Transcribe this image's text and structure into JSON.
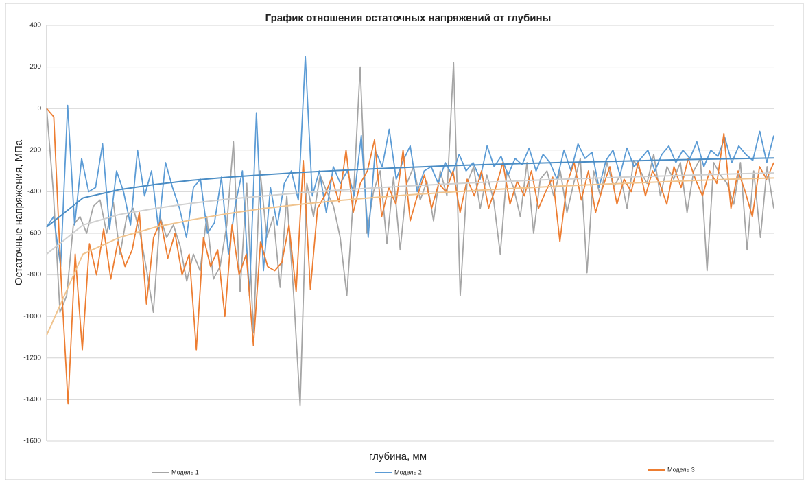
{
  "chart_data": {
    "type": "line",
    "title": "График отношения остаточных напряжений от глубины",
    "x_label": "глубина, мм",
    "y_label": "Остаточные напряжения, МПа",
    "ylim": [
      -1600,
      400
    ],
    "yticks": [
      -1600,
      -1400,
      -1200,
      -1000,
      -800,
      -600,
      -400,
      -200,
      0,
      200,
      400
    ],
    "grid": true,
    "series": [
      {
        "name": "Модель 1",
        "color": "#a5a5a5",
        "values": [
          0,
          -400,
          -980,
          -900,
          -560,
          -520,
          -600,
          -470,
          -440,
          -600,
          -450,
          -700,
          -520,
          -480,
          -600,
          -780,
          -980,
          -520,
          -620,
          -560,
          -660,
          -830,
          -700,
          -780,
          -520,
          -820,
          -760,
          -560,
          -160,
          -880,
          -360,
          -1080,
          -300,
          -620,
          -520,
          -860,
          -420,
          -880,
          -1430,
          -360,
          -520,
          -320,
          -400,
          -470,
          -620,
          -900,
          -420,
          200,
          -600,
          -400,
          -300,
          -650,
          -330,
          -680,
          -360,
          -280,
          -440,
          -350,
          -540,
          -300,
          -420,
          220,
          -900,
          -360,
          -280,
          -480,
          -320,
          -440,
          -700,
          -300,
          -380,
          -520,
          -260,
          -600,
          -340,
          -300,
          -420,
          -300,
          -500,
          -360,
          -240,
          -790,
          -300,
          -420,
          -260,
          -380,
          -320,
          -480,
          -250,
          -300,
          -360,
          -220,
          -420,
          -280,
          -340,
          -260,
          -500,
          -300,
          -240,
          -780,
          -260,
          -320,
          -360,
          -460,
          -260,
          -680,
          -300,
          -620,
          -280,
          -480
        ]
      },
      {
        "name": "Модель 2",
        "color": "#5b9bd5",
        "values": [
          -570,
          -520,
          -760,
          15,
          -560,
          -240,
          -400,
          -380,
          -170,
          -580,
          -300,
          -400,
          -560,
          -200,
          -420,
          -300,
          -580,
          -260,
          -380,
          -480,
          -620,
          -380,
          -340,
          -600,
          -550,
          -330,
          -700,
          -460,
          -300,
          -900,
          -20,
          -780,
          -380,
          -560,
          -360,
          -300,
          -440,
          250,
          -420,
          -300,
          -500,
          -280,
          -360,
          -300,
          -420,
          -130,
          -620,
          -200,
          -280,
          -100,
          -340,
          -250,
          -180,
          -400,
          -300,
          -280,
          -360,
          -260,
          -320,
          -220,
          -300,
          -260,
          -340,
          -180,
          -280,
          -230,
          -320,
          -240,
          -270,
          -190,
          -300,
          -220,
          -260,
          -340,
          -200,
          -300,
          -170,
          -240,
          -210,
          -380,
          -250,
          -200,
          -320,
          -190,
          -280,
          -240,
          -200,
          -300,
          -220,
          -180,
          -260,
          -200,
          -240,
          -160,
          -280,
          -200,
          -230,
          -140,
          -260,
          -180,
          -220,
          -250,
          -110,
          -260,
          -130
        ]
      },
      {
        "name": "Модель 3",
        "color": "#ed7d31",
        "values": [
          0,
          -40,
          -800,
          -1420,
          -700,
          -1160,
          -650,
          -800,
          -580,
          -820,
          -640,
          -760,
          -680,
          -500,
          -940,
          -620,
          -540,
          -720,
          -600,
          -800,
          -700,
          -1160,
          -620,
          -760,
          -680,
          -1000,
          -560,
          -800,
          -700,
          -1140,
          -640,
          -760,
          -780,
          -740,
          -560,
          -880,
          -250,
          -870,
          -480,
          -420,
          -330,
          -450,
          -200,
          -500,
          -360,
          -300,
          -150,
          -520,
          -380,
          -460,
          -200,
          -540,
          -420,
          -320,
          -480,
          -360,
          -400,
          -300,
          -500,
          -340,
          -420,
          -300,
          -480,
          -380,
          -260,
          -460,
          -350,
          -420,
          -300,
          -480,
          -400,
          -330,
          -640,
          -360,
          -260,
          -440,
          -300,
          -500,
          -380,
          -280,
          -460,
          -340,
          -400,
          -260,
          -420,
          -300,
          -360,
          -460,
          -280,
          -380,
          -240,
          -340,
          -420,
          -300,
          -360,
          -120,
          -480,
          -300,
          -400,
          -520,
          -280,
          -340,
          -260
        ]
      },
      {
        "color": "#d0d0d0",
        "trendline": true,
        "values": [
          -700,
          -560,
          -510,
          -480,
          -455,
          -435,
          -420,
          -405,
          -393,
          -382,
          -372,
          -363,
          -355,
          -348,
          -341,
          -335,
          -329,
          -324,
          -319,
          -314,
          -310
        ]
      },
      {
        "color": "#4a8cc4",
        "trendline": true,
        "values": [
          -570,
          -430,
          -390,
          -365,
          -345,
          -330,
          -318,
          -307,
          -298,
          -290,
          -283,
          -276,
          -270,
          -265,
          -260,
          -256,
          -252,
          -248,
          -244,
          -241,
          -238
        ]
      },
      {
        "color": "#f0c48f",
        "trendline": true,
        "values": [
          -1090,
          -700,
          -620,
          -570,
          -535,
          -505,
          -480,
          -460,
          -443,
          -428,
          -415,
          -403,
          -392,
          -383,
          -374,
          -366,
          -359,
          -352,
          -345,
          -339,
          -334
        ]
      }
    ]
  }
}
